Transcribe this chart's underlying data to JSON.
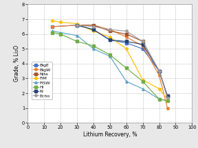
{
  "title": "",
  "xlabel": "Lithium Recovery, %",
  "ylabel": "Grade, % Li₂O",
  "xlim": [
    0,
    100
  ],
  "ylim": [
    0.0,
    8.0
  ],
  "xticks": [
    0,
    10,
    20,
    30,
    40,
    50,
    60,
    70,
    80,
    90,
    100
  ],
  "yticks": [
    0.0,
    1.0,
    2.0,
    3.0,
    4.0,
    5.0,
    6.0,
    7.0,
    8.0
  ],
  "series": [
    {
      "name": "BigE",
      "color": "#4472C4",
      "marker": "s",
      "x": [
        15,
        30,
        40,
        50,
        60,
        70,
        80,
        85
      ],
      "y": [
        6.5,
        6.6,
        6.3,
        5.6,
        5.4,
        5.0,
        3.5,
        1.8
      ]
    },
    {
      "name": "BigW",
      "color": "#ED7D31",
      "marker": "o",
      "x": [
        15,
        30,
        40,
        50,
        60,
        70,
        80,
        85
      ],
      "y": [
        6.5,
        6.6,
        6.6,
        6.3,
        5.8,
        5.2,
        3.2,
        1.0
      ]
    },
    {
      "name": "Nite",
      "color": "#A5522A",
      "marker": "s",
      "x": [
        30,
        40,
        50,
        60,
        70,
        80,
        85
      ],
      "y": [
        6.6,
        6.6,
        6.2,
        6.0,
        5.5,
        3.5,
        1.8
      ]
    },
    {
      "name": "FIM",
      "color": "#FFC000",
      "marker": "o",
      "x": [
        15,
        20,
        30,
        40,
        50,
        60,
        70,
        80,
        85
      ],
      "y": [
        6.9,
        6.8,
        6.7,
        6.2,
        5.8,
        5.0,
        2.9,
        2.3,
        1.6
      ]
    },
    {
      "name": "FISW",
      "color": "#5BA3C9",
      "marker": "^",
      "x": [
        15,
        20,
        30,
        40,
        50,
        60,
        70,
        80,
        85
      ],
      "y": [
        6.2,
        6.1,
        5.9,
        5.0,
        4.5,
        2.8,
        2.3,
        1.6,
        1.5
      ]
    },
    {
      "name": "Hi",
      "color": "#70AD47",
      "marker": "s",
      "x": [
        15,
        20,
        30,
        40,
        50,
        60,
        70,
        80,
        85
      ],
      "y": [
        6.1,
        6.0,
        5.5,
        5.2,
        4.6,
        3.7,
        2.8,
        1.6,
        1.5
      ]
    },
    {
      "name": "KI",
      "color": "#264478",
      "marker": "s",
      "x": [
        30,
        40,
        50,
        60,
        70,
        80,
        85
      ],
      "y": [
        6.6,
        6.3,
        5.6,
        5.5,
        5.3,
        3.5,
        1.8
      ]
    },
    {
      "name": "Echo",
      "color": "#9E9E9E",
      "marker": "o",
      "x": [
        30,
        40,
        50,
        60,
        70,
        80,
        85
      ],
      "y": [
        6.6,
        6.5,
        6.3,
        6.2,
        5.5,
        3.5,
        1.7
      ]
    }
  ],
  "legend_fontsize": 4.5,
  "axis_fontsize": 5.5,
  "tick_fontsize": 4.8,
  "linewidth": 0.85,
  "markersize": 2.5,
  "fig_bg": "#E8E8E8",
  "plot_bg": "#FFFFFF"
}
